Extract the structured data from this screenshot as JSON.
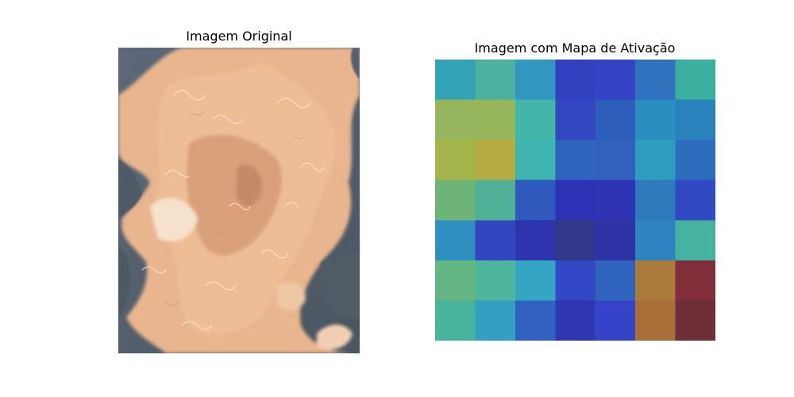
{
  "figure": {
    "left_panel": {
      "title": "Imagem Original",
      "image_description": "close-up photo of light tan curly fur on a dark blue-gray background"
    },
    "right_panel": {
      "title": "Imagem com Mapa de Ativação",
      "rows": 7,
      "cols": 7,
      "cell_colors": [
        [
          "#33a3b8",
          "#4cb19e",
          "#3398c1",
          "#3340c0",
          "#3444c4",
          "#2f72bd",
          "#3bb09e"
        ],
        [
          "#96b55c",
          "#97b55b",
          "#43b5ab",
          "#3447c3",
          "#2e5ebb",
          "#2a8fbf",
          "#2a82bc"
        ],
        [
          "#a6b44c",
          "#b6ac43",
          "#40b4ae",
          "#3063bd",
          "#3161bc",
          "#2e9dc0",
          "#2d6dbe"
        ],
        [
          "#6eb378",
          "#51b197",
          "#2f59bd",
          "#2e32b5",
          "#2e34b3",
          "#2e7abd",
          "#3149c2"
        ],
        [
          "#2f8fc0",
          "#3346c1",
          "#2d34ad",
          "#32388a",
          "#2e34a6",
          "#2f83c0",
          "#46b3a0"
        ],
        [
          "#63b584",
          "#4eb69c",
          "#34a6c4",
          "#3348c4",
          "#2f63bd",
          "#ac7a3a",
          "#822e3a"
        ],
        [
          "#48b49e",
          "#329fc3",
          "#3161c0",
          "#3036b0",
          "#3443c7",
          "#a86f37",
          "#6f2f39"
        ]
      ]
    }
  }
}
